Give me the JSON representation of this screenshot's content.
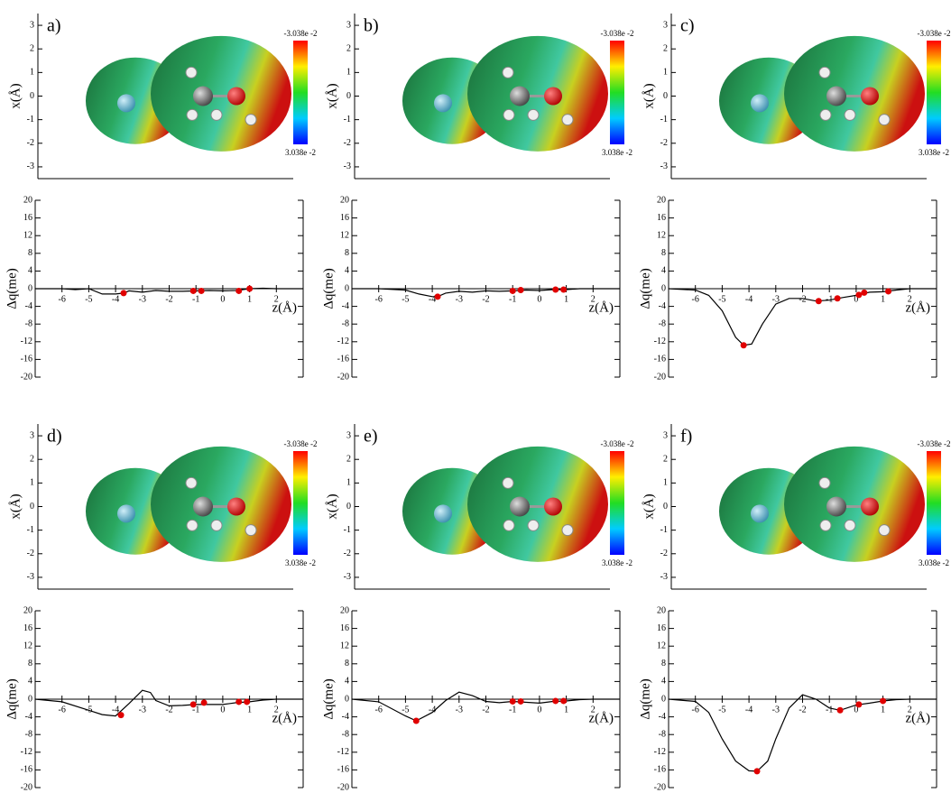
{
  "chart_data": [
    {
      "type": "map",
      "label": "a)",
      "ylabel": "x(Å)",
      "ylim": [
        -3.5,
        3.5
      ],
      "yticks": [
        -3,
        -2,
        -1,
        0,
        1,
        2,
        3
      ],
      "colorbar_top": "-3.038e -2",
      "colorbar_bottom": "3.038e -2"
    },
    {
      "type": "map",
      "label": "b)",
      "ylabel": "x(Å)",
      "ylim": [
        -3.5,
        3.5
      ],
      "yticks": [
        -3,
        -2,
        -1,
        0,
        1,
        2,
        3
      ],
      "colorbar_top": "-3.038e -2",
      "colorbar_bottom": "3.038e -2"
    },
    {
      "type": "map",
      "label": "c)",
      "ylabel": "x(Å)",
      "ylim": [
        -3.5,
        3.5
      ],
      "yticks": [
        -3,
        -2,
        -1,
        0,
        1,
        2,
        3
      ],
      "colorbar_top": "-3.038e -2",
      "colorbar_bottom": "3.038e -2"
    },
    {
      "type": "map",
      "label": "d)",
      "ylabel": "x(Å)",
      "ylim": [
        -3.5,
        3.5
      ],
      "yticks": [
        -3,
        -2,
        -1,
        0,
        1,
        2,
        3
      ],
      "colorbar_top": "-3.038e -2",
      "colorbar_bottom": "3.038e -2"
    },
    {
      "type": "map",
      "label": "e)",
      "ylabel": "x(Å)",
      "ylim": [
        -3.5,
        3.5
      ],
      "yticks": [
        -3,
        -2,
        -1,
        0,
        1,
        2,
        3
      ],
      "colorbar_top": "-3.038e -2",
      "colorbar_bottom": "3.038e -2"
    },
    {
      "type": "map",
      "label": "f)",
      "ylabel": "x(Å)",
      "ylim": [
        -3.5,
        3.5
      ],
      "yticks": [
        -3,
        -2,
        -1,
        0,
        1,
        2,
        3
      ],
      "colorbar_top": "-3.038e -2",
      "colorbar_bottom": "3.038e -2"
    },
    {
      "type": "line",
      "xlabel": "z(Å)",
      "ylabel": "Δq(me)",
      "xlim": [
        -7,
        3
      ],
      "ylim": [
        -20,
        20
      ],
      "xticks": [
        -6,
        -5,
        -4,
        -3,
        -2,
        -1,
        0,
        1,
        2
      ],
      "yticks": [
        -20,
        -16,
        -12,
        -8,
        -4,
        0,
        4,
        8,
        12,
        16,
        20
      ],
      "color": "#000000",
      "x": [
        -7,
        -6,
        -5.5,
        -5,
        -4.5,
        -4,
        -3.7,
        -3.5,
        -3,
        -2.5,
        -2,
        -1.5,
        -1,
        -0.5,
        0,
        0.5,
        1,
        1.5,
        2,
        3
      ],
      "values": [
        0,
        0,
        -0.2,
        0,
        -1.2,
        -1.2,
        -1,
        -0.5,
        -0.8,
        -0.4,
        -0.6,
        -0.6,
        -0.5,
        -0.4,
        -0.5,
        -0.4,
        0,
        0.1,
        0,
        0
      ],
      "points": {
        "color": "#e00000",
        "x": [
          -3.7,
          -1.1,
          -0.8,
          0.6,
          1
        ],
        "values": [
          -1,
          -0.5,
          -0.5,
          -0.5,
          0
        ]
      }
    },
    {
      "type": "line",
      "xlabel": "z(Å)",
      "ylabel": "Δq(me)",
      "xlim": [
        -7,
        3
      ],
      "ylim": [
        -20,
        20
      ],
      "xticks": [
        -6,
        -5,
        -4,
        -3,
        -2,
        -1,
        0,
        1,
        2
      ],
      "yticks": [
        -20,
        -16,
        -12,
        -8,
        -4,
        0,
        4,
        8,
        12,
        16,
        20
      ],
      "color": "#000000",
      "x": [
        -7,
        -6,
        -5,
        -4.5,
        -4,
        -3.8,
        -3.5,
        -3,
        -2.5,
        -2,
        -1.5,
        -1,
        -0.5,
        0,
        0.5,
        1,
        1.5,
        2,
        3
      ],
      "values": [
        0,
        0,
        -0.3,
        -1.2,
        -1.8,
        -1.8,
        -1,
        -0.6,
        -0.8,
        -0.5,
        -0.6,
        -0.5,
        -0.3,
        -0.4,
        -0.2,
        -0.2,
        0,
        0,
        0
      ],
      "points": {
        "color": "#e00000",
        "x": [
          -3.8,
          -1,
          -0.7,
          0.6,
          0.9
        ],
        "values": [
          -1.8,
          -0.5,
          -0.3,
          -0.2,
          -0.2
        ]
      }
    },
    {
      "type": "line",
      "xlabel": "z(Å)",
      "ylabel": "Δq(me)",
      "xlim": [
        -7,
        3
      ],
      "ylim": [
        -20,
        20
      ],
      "xticks": [
        -6,
        -5,
        -4,
        -3,
        -2,
        -1,
        0,
        1,
        2
      ],
      "yticks": [
        -20,
        -16,
        -12,
        -8,
        -4,
        0,
        4,
        8,
        12,
        16,
        20
      ],
      "color": "#000000",
      "x": [
        -7,
        -6,
        -5.5,
        -5,
        -4.5,
        -4.2,
        -3.9,
        -3.5,
        -3,
        -2.5,
        -2,
        -1.5,
        -1,
        -0.5,
        0,
        0.5,
        1,
        1.5,
        2,
        3
      ],
      "values": [
        0,
        -0.3,
        -1.5,
        -5,
        -11,
        -12.8,
        -12.5,
        -8,
        -3.5,
        -2.2,
        -2.2,
        -2.8,
        -2.6,
        -2,
        -1.5,
        -0.8,
        -0.7,
        -0.3,
        0,
        0
      ],
      "points": {
        "color": "#e00000",
        "x": [
          -4.2,
          -1.4,
          -0.7,
          0.1,
          0.3,
          1.2
        ],
        "values": [
          -12.8,
          -2.8,
          -2.2,
          -1.4,
          -0.9,
          -0.6
        ]
      }
    },
    {
      "type": "line",
      "xlabel": "z(Å)",
      "ylabel": "Δq(me)",
      "xlim": [
        -7,
        3
      ],
      "ylim": [
        -20,
        20
      ],
      "xticks": [
        -6,
        -5,
        -4,
        -3,
        -2,
        -1,
        0,
        1,
        2
      ],
      "yticks": [
        -20,
        -16,
        -12,
        -8,
        -4,
        0,
        4,
        8,
        12,
        16,
        20
      ],
      "color": "#000000",
      "x": [
        -7,
        -6,
        -5,
        -4.5,
        -4,
        -3.5,
        -3,
        -2.7,
        -2.5,
        -2,
        -1.5,
        -1,
        0,
        0.5,
        1,
        1.5,
        2,
        3
      ],
      "values": [
        0,
        -0.6,
        -2.5,
        -3.5,
        -3.8,
        -1,
        2,
        1.5,
        -0.3,
        -1.5,
        -1.4,
        -1.2,
        -1.2,
        -0.8,
        -0.6,
        -0.2,
        0,
        0
      ],
      "points": {
        "color": "#e00000",
        "x": [
          -3.8,
          -1.1,
          -0.7,
          0.6,
          0.9
        ],
        "values": [
          -3.6,
          -1.2,
          -0.8,
          -0.6,
          -0.6
        ]
      }
    },
    {
      "type": "line",
      "xlabel": "z(Å)",
      "ylabel": "Δq(me)",
      "xlim": [
        -7,
        3
      ],
      "ylim": [
        -20,
        20
      ],
      "xticks": [
        -6,
        -5,
        -4,
        -3,
        -2,
        -1,
        0,
        1,
        2
      ],
      "yticks": [
        -20,
        -16,
        -12,
        -8,
        -4,
        0,
        4,
        8,
        12,
        16,
        20
      ],
      "color": "#000000",
      "x": [
        -7,
        -6,
        -5,
        -4.6,
        -4,
        -3.5,
        -3,
        -2.5,
        -2,
        -1.5,
        -1,
        0,
        0.5,
        1,
        1.5,
        2,
        3
      ],
      "values": [
        0,
        -0.6,
        -3.8,
        -4.9,
        -3,
        -0.3,
        1.6,
        0.8,
        -0.5,
        -0.8,
        -0.5,
        -0.9,
        -0.5,
        -0.4,
        -0.1,
        0,
        0
      ],
      "points": {
        "color": "#e00000",
        "x": [
          -4.6,
          -1,
          -0.7,
          0.6,
          0.9
        ],
        "values": [
          -4.9,
          -0.5,
          -0.5,
          -0.4,
          -0.4
        ]
      }
    },
    {
      "type": "line",
      "xlabel": "z(Å)",
      "ylabel": "Δq(me)",
      "xlim": [
        -7,
        3
      ],
      "ylim": [
        -20,
        20
      ],
      "xticks": [
        -6,
        -5,
        -4,
        -3,
        -2,
        -1,
        0,
        1,
        2
      ],
      "yticks": [
        -20,
        -16,
        -12,
        -8,
        -4,
        0,
        4,
        8,
        12,
        16,
        20
      ],
      "color": "#000000",
      "x": [
        -7,
        -6,
        -5.5,
        -5,
        -4.5,
        -4,
        -3.7,
        -3.3,
        -3,
        -2.5,
        -2,
        -1.5,
        -1,
        -0.6,
        0,
        0.5,
        1,
        1.5,
        2,
        3
      ],
      "values": [
        0,
        -0.5,
        -3,
        -9,
        -14,
        -16.2,
        -16.3,
        -14,
        -9,
        -2,
        1,
        0,
        -2,
        -2.5,
        -1.3,
        -0.9,
        -0.4,
        -0.1,
        0,
        0
      ],
      "points": {
        "color": "#e00000",
        "x": [
          -3.7,
          -0.6,
          0.1,
          1
        ],
        "values": [
          -16.3,
          -2.5,
          -1.2,
          -0.4
        ]
      }
    }
  ]
}
